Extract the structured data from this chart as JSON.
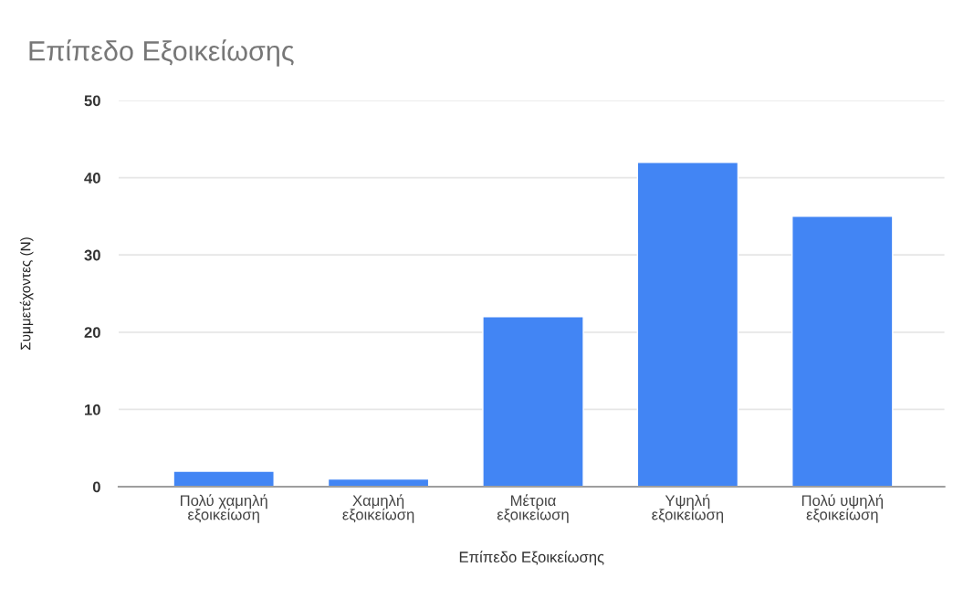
{
  "chart_data": {
    "type": "bar",
    "title": "Επίπεδο Εξοικείωσης",
    "xlabel": "Επίπεδο Εξοικείωσης",
    "ylabel": "Συμμετέχοντες (N)",
    "categories": [
      "Πολύ χαμηλή\nεξοικείωση",
      "Χαμηλή\nεξοικείωση",
      "Μέτρια\nεξοικείωση",
      "Υψηλή\nεξοικείωση",
      "Πολύ υψηλή\nεξοικείωση"
    ],
    "values": [
      2,
      1,
      22,
      42,
      35
    ],
    "color": "#4285f4",
    "ylim": [
      0,
      50
    ],
    "yticks": [
      0,
      10,
      20,
      30,
      40,
      50
    ],
    "grid": "y",
    "legend": false
  }
}
